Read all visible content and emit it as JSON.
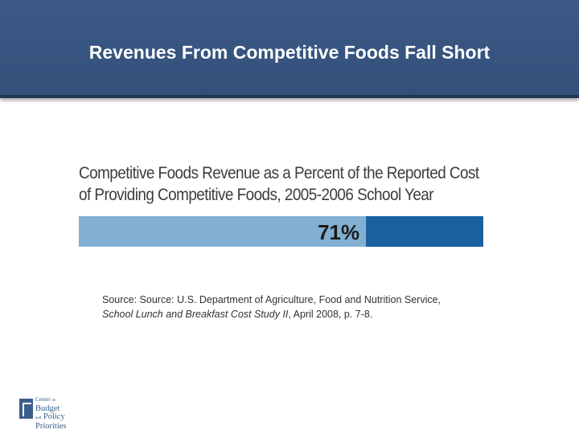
{
  "slide": {
    "title": "Revenues From Competitive Foods Fall Short"
  },
  "chart_data": {
    "type": "bar",
    "title_lines": [
      "Competitive Foods Revenue as a Percent of the Reported Cost",
      "of Providing Competitive Foods, 2005-2006 School Year"
    ],
    "categories": [
      ""
    ],
    "values": [
      71
    ],
    "max": 100,
    "value_label": "71%",
    "colors": {
      "filled": "#82b0d3",
      "remainder": "#1a5f9e"
    }
  },
  "source": {
    "line1": "Source: Source: U.S. Department of Agriculture, Food and Nutrition Service,",
    "line2_italic": "School Lunch and Breakfast Cost Study II",
    "line2_rest": ", April 2008, p. 7-8."
  },
  "logo": {
    "line1": "Center",
    "line1_small": "on",
    "line2": "Budget",
    "line3_small": "and",
    "line3": "Policy",
    "line4": "Priorities"
  }
}
